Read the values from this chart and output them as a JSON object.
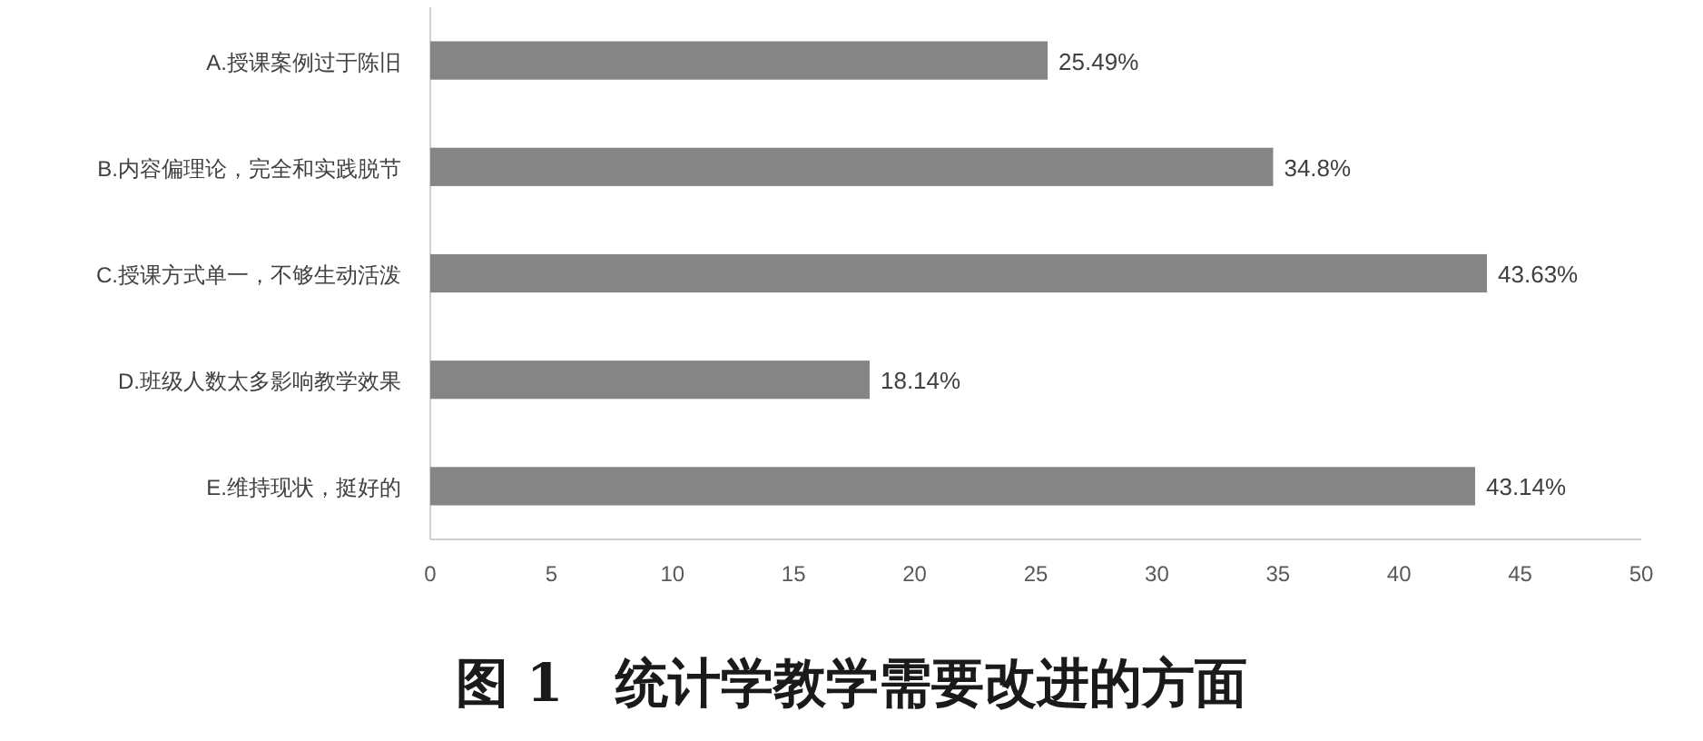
{
  "chart_data": {
    "type": "bar",
    "orientation": "horizontal",
    "title": "图 1　统计学教学需要改进的方面",
    "categories": [
      "A.授课案例过于陈旧",
      "B.内容偏理论，完全和实践脱节",
      "C.授课方式单一，不够生动活泼",
      "D.班级人数太多影响教学效果",
      "E.维持现状，挺好的"
    ],
    "values": [
      25.49,
      34.8,
      43.63,
      18.14,
      43.14
    ],
    "value_labels": [
      "25.49%",
      "34.8%",
      "43.63%",
      "18.14%",
      "43.14%"
    ],
    "color": "#858585",
    "xlim": [
      0,
      50
    ],
    "xticks": [
      0,
      5,
      10,
      15,
      20,
      25,
      30,
      35,
      40,
      45,
      50
    ]
  }
}
